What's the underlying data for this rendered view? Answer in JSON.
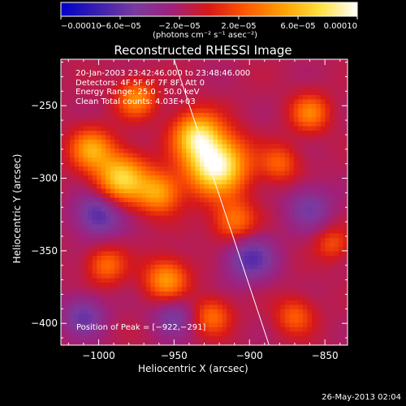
{
  "chart_data": {
    "type": "heatmap",
    "title": "Reconstructed RHESSI Image",
    "xlabel": "Heliocentric X (arcsec)",
    "ylabel": "Heliocentric Y (arcsec)",
    "xlim": [
      -1025,
      -835
    ],
    "ylim": [
      -415,
      -218
    ],
    "xticks": [
      -1000,
      -950,
      -900,
      -850
    ],
    "xtick_labels": [
      "−1000",
      "−950",
      "−900",
      "−850"
    ],
    "yticks": [
      -400,
      -350,
      -300,
      -250
    ],
    "ytick_labels": [
      "−400",
      "−350",
      "−300",
      "−250"
    ],
    "colorbar": {
      "range": [
        -0.0001,
        0.0001
      ],
      "ticks": [
        -0.0001,
        -6e-05,
        -2e-05,
        2e-05,
        6e-05,
        0.0001
      ],
      "tick_labels": [
        "−0.00010",
        "−6.0e−05",
        "−2.0e−05",
        "2.0e−05",
        "6.0e−05",
        "0.00010"
      ],
      "units": "(photons cm⁻² s⁻¹ asec⁻²)",
      "colors": [
        "#0000c8",
        "#3a1fb0",
        "#7a3aa0",
        "#a0207a",
        "#d81818",
        "#ff5a00",
        "#ffa000",
        "#ffe040",
        "#ffffff"
      ]
    },
    "annotations": [
      "20-Jan-2003 23:42:46.000 to 23:48:46.000",
      "Detectors: 4F 5F 6F 7F 8F, Att 0",
      "Energy Range: 25.0 - 50.0 keV",
      "Clean    Total counts: 4.03E+03"
    ],
    "peak_label": "Position of Peak = [−922,−291]",
    "peak": [
      -922,
      -291
    ],
    "limb_line": [
      [
        -950,
        -218
      ],
      [
        -887,
        -415
      ]
    ],
    "sources": [
      {
        "x": -922,
        "y": -291,
        "amp": 1.0,
        "sigma": 14
      },
      {
        "x": -935,
        "y": -270,
        "amp": 0.7,
        "sigma": 11
      },
      {
        "x": -960,
        "y": -310,
        "amp": 0.55,
        "sigma": 10
      },
      {
        "x": -985,
        "y": -300,
        "amp": 0.75,
        "sigma": 12
      },
      {
        "x": -1005,
        "y": -280,
        "amp": 0.55,
        "sigma": 10
      },
      {
        "x": -975,
        "y": -245,
        "amp": 0.5,
        "sigma": 9
      },
      {
        "x": -910,
        "y": -330,
        "amp": 0.45,
        "sigma": 10
      },
      {
        "x": -880,
        "y": -290,
        "amp": 0.35,
        "sigma": 9
      },
      {
        "x": -860,
        "y": -255,
        "amp": 0.45,
        "sigma": 9
      },
      {
        "x": -955,
        "y": -370,
        "amp": 0.55,
        "sigma": 10
      },
      {
        "x": -995,
        "y": -360,
        "amp": 0.4,
        "sigma": 9
      },
      {
        "x": -925,
        "y": -395,
        "amp": 0.4,
        "sigma": 9
      },
      {
        "x": -870,
        "y": -395,
        "amp": 0.35,
        "sigma": 9
      },
      {
        "x": -845,
        "y": -345,
        "amp": 0.3,
        "sigma": 8
      },
      {
        "x": -1010,
        "y": -395,
        "amp": -0.35,
        "sigma": 10
      },
      {
        "x": -1000,
        "y": -325,
        "amp": -0.45,
        "sigma": 11
      },
      {
        "x": -900,
        "y": -355,
        "amp": -0.4,
        "sigma": 12
      },
      {
        "x": -860,
        "y": -320,
        "amp": -0.3,
        "sigma": 11
      },
      {
        "x": -950,
        "y": -395,
        "amp": -0.3,
        "sigma": 10
      }
    ]
  },
  "timestamp": "26-May-2013 02:04"
}
